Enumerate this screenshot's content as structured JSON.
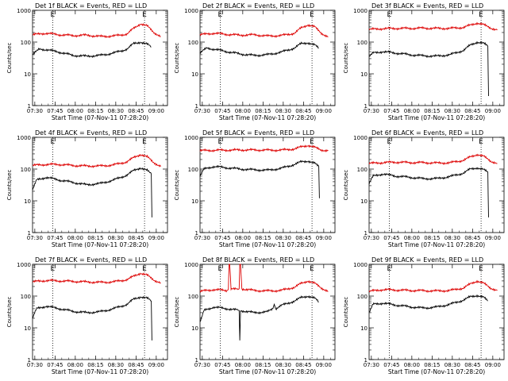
{
  "figure": {
    "ylabel": "Counts/sec",
    "xlabel": "Start Time (07-Nov-11 07:28:20)",
    "xticks": [
      "07:30",
      "07:45",
      "08:00",
      "08:15",
      "08:30",
      "08:45",
      "09:00"
    ],
    "yticks": [
      "1",
      "10",
      "100",
      "1000"
    ],
    "marker_label": "E",
    "colors": {
      "events": "#000000",
      "lld": "#dd0000",
      "axes": "#000000",
      "background": "#ffffff"
    },
    "x_range_minutes": [
      0,
      100
    ],
    "y_range_log": [
      1,
      1000
    ]
  },
  "chart_data": [
    {
      "type": "line",
      "title": "Det 1f BLACK = Events, RED = LLD",
      "xlabel": "Start Time (07-Nov-11 07:28:20)",
      "ylabel": "Counts/sec",
      "yscale": "log",
      "ylim": [
        1,
        1000
      ],
      "vlines_minutes": [
        15,
        83
      ],
      "series": [
        {
          "name": "LLD",
          "color": "#dd0000",
          "x": [
            0,
            10,
            20,
            30,
            40,
            50,
            60,
            70,
            75,
            80,
            85,
            90,
            95
          ],
          "y": [
            170,
            190,
            170,
            160,
            165,
            150,
            155,
            180,
            270,
            380,
            320,
            200,
            150
          ]
        },
        {
          "name": "Events",
          "color": "#000000",
          "x": [
            0,
            5,
            10,
            20,
            30,
            40,
            50,
            60,
            70,
            75,
            80,
            85,
            88
          ],
          "y": [
            40,
            60,
            58,
            48,
            38,
            36,
            38,
            45,
            60,
            90,
            100,
            85,
            70
          ]
        }
      ]
    },
    {
      "type": "line",
      "title": "Det 2f BLACK = Events, RED = LLD",
      "xlabel": "Start Time (07-Nov-11 07:28:20)",
      "ylabel": "Counts/sec",
      "yscale": "log",
      "ylim": [
        1,
        1000
      ],
      "vlines_minutes": [
        15,
        83
      ],
      "series": [
        {
          "name": "LLD",
          "color": "#dd0000",
          "x": [
            0,
            10,
            20,
            30,
            40,
            50,
            60,
            70,
            75,
            80,
            85,
            90,
            95
          ],
          "y": [
            170,
            190,
            175,
            165,
            170,
            155,
            160,
            190,
            280,
            350,
            300,
            190,
            145
          ]
        },
        {
          "name": "Events",
          "color": "#000000",
          "x": [
            0,
            5,
            10,
            20,
            30,
            40,
            50,
            60,
            70,
            75,
            80,
            85,
            88
          ],
          "y": [
            45,
            65,
            60,
            50,
            42,
            38,
            40,
            48,
            65,
            90,
            95,
            80,
            65
          ]
        }
      ]
    },
    {
      "type": "line",
      "title": "Det 3f BLACK = Events, RED = LLD",
      "xlabel": "Start Time (07-Nov-11 07:28:20)",
      "ylabel": "Counts/sec",
      "yscale": "log",
      "ylim": [
        1,
        1000
      ],
      "vlines_minutes": [
        15,
        83
      ],
      "series": [
        {
          "name": "LLD",
          "color": "#dd0000",
          "x": [
            0,
            10,
            20,
            30,
            40,
            50,
            60,
            70,
            75,
            80,
            85,
            90,
            95
          ],
          "y": [
            250,
            265,
            270,
            270,
            275,
            270,
            270,
            290,
            340,
            400,
            350,
            280,
            240
          ]
        },
        {
          "name": "Events",
          "color": "#000000",
          "x": [
            0,
            3,
            10,
            20,
            30,
            40,
            50,
            60,
            70,
            75,
            80,
            85,
            88,
            88.5
          ],
          "y": [
            35,
            45,
            50,
            45,
            40,
            37,
            36,
            40,
            55,
            80,
            100,
            90,
            75,
            2
          ]
        }
      ]
    },
    {
      "type": "line",
      "title": "Det 4f BLACK = Events, RED = LLD",
      "xlabel": "Start Time (07-Nov-11 07:28:20)",
      "ylabel": "Counts/sec",
      "yscale": "log",
      "ylim": [
        1,
        1000
      ],
      "vlines_minutes": [
        15,
        83
      ],
      "series": [
        {
          "name": "LLD",
          "color": "#dd0000",
          "x": [
            0,
            10,
            20,
            30,
            40,
            50,
            60,
            70,
            75,
            80,
            85,
            90,
            95
          ],
          "y": [
            130,
            140,
            140,
            130,
            125,
            125,
            135,
            170,
            230,
            290,
            240,
            160,
            120
          ]
        },
        {
          "name": "Events",
          "color": "#000000",
          "x": [
            0,
            3,
            10,
            20,
            30,
            40,
            50,
            60,
            70,
            75,
            80,
            85,
            88,
            88.5
          ],
          "y": [
            22,
            45,
            55,
            45,
            38,
            32,
            35,
            45,
            65,
            90,
            110,
            90,
            70,
            3
          ]
        }
      ]
    },
    {
      "type": "line",
      "title": "Det 5f BLACK = Events, RED = LLD",
      "xlabel": "Start Time (07-Nov-11 07:28:20)",
      "ylabel": "Counts/sec",
      "yscale": "log",
      "ylim": [
        1,
        1000
      ],
      "vlines_minutes": [
        15,
        83
      ],
      "series": [
        {
          "name": "LLD",
          "color": "#dd0000",
          "x": [
            0,
            10,
            20,
            30,
            40,
            50,
            60,
            70,
            75,
            80,
            85,
            90,
            95
          ],
          "y": [
            380,
            390,
            395,
            400,
            400,
            395,
            395,
            430,
            500,
            560,
            480,
            400,
            380
          ]
        },
        {
          "name": "Events",
          "color": "#000000",
          "x": [
            0,
            3,
            10,
            20,
            30,
            40,
            50,
            60,
            70,
            75,
            80,
            85,
            88,
            88.5
          ],
          "y": [
            60,
            100,
            120,
            110,
            100,
            95,
            92,
            105,
            140,
            170,
            180,
            150,
            120,
            12
          ]
        }
      ]
    },
    {
      "type": "line",
      "title": "Det 6f BLACK = Events, RED = LLD",
      "xlabel": "Start Time (07-Nov-11 07:28:20)",
      "ylabel": "Counts/sec",
      "yscale": "log",
      "ylim": [
        1,
        1000
      ],
      "vlines_minutes": [
        15,
        83
      ],
      "series": [
        {
          "name": "LLD",
          "color": "#dd0000",
          "x": [
            0,
            10,
            20,
            30,
            40,
            50,
            60,
            70,
            75,
            80,
            85,
            90,
            95
          ],
          "y": [
            150,
            160,
            165,
            160,
            160,
            155,
            158,
            190,
            240,
            290,
            250,
            180,
            150
          ]
        },
        {
          "name": "Events",
          "color": "#000000",
          "x": [
            0,
            3,
            10,
            20,
            30,
            40,
            50,
            60,
            70,
            75,
            80,
            85,
            88,
            88.5
          ],
          "y": [
            35,
            60,
            70,
            60,
            55,
            50,
            50,
            58,
            75,
            100,
            110,
            95,
            80,
            3
          ]
        }
      ]
    },
    {
      "type": "line",
      "title": "Det 7f BLACK = Events, RED = LLD",
      "xlabel": "Start Time (07-Nov-11 07:28:20)",
      "ylabel": "Counts/sec",
      "yscale": "log",
      "ylim": [
        1,
        1000
      ],
      "vlines_minutes": [
        15,
        83
      ],
      "series": [
        {
          "name": "LLD",
          "color": "#dd0000",
          "x": [
            0,
            10,
            20,
            30,
            40,
            50,
            60,
            70,
            75,
            80,
            85,
            90,
            95
          ],
          "y": [
            280,
            310,
            300,
            290,
            280,
            270,
            280,
            330,
            420,
            530,
            450,
            320,
            260
          ]
        },
        {
          "name": "Events",
          "color": "#000000",
          "x": [
            0,
            3,
            10,
            20,
            30,
            40,
            50,
            60,
            70,
            75,
            80,
            85,
            88,
            88.5
          ],
          "y": [
            20,
            40,
            48,
            40,
            33,
            30,
            32,
            40,
            55,
            80,
            95,
            85,
            70,
            4
          ]
        }
      ]
    },
    {
      "type": "line",
      "title": "Det 8f BLACK = Events, RED = LLD",
      "xlabel": "Start Time (07-Nov-11 07:28:20)",
      "ylabel": "Counts/sec",
      "yscale": "log",
      "ylim": [
        1,
        1000
      ],
      "vlines_minutes": [
        15,
        83
      ],
      "series": [
        {
          "name": "LLD",
          "color": "#dd0000",
          "x": [
            0,
            10,
            20,
            21,
            21.5,
            22,
            23,
            28,
            29,
            29.5,
            30,
            31,
            40,
            50,
            60,
            70,
            75,
            80,
            85,
            90,
            95
          ],
          "y": [
            140,
            160,
            150,
            160,
            1000,
            1000,
            170,
            160,
            170,
            1000,
            1000,
            170,
            150,
            145,
            150,
            190,
            250,
            300,
            250,
            180,
            140
          ]
        },
        {
          "name": "Events",
          "color": "#000000",
          "x": [
            0,
            3,
            10,
            20,
            28,
            29,
            29.5,
            30,
            40,
            50,
            54,
            55,
            56,
            60,
            70,
            75,
            80,
            85,
            88
          ],
          "y": [
            15,
            35,
            45,
            40,
            36,
            35,
            4,
            35,
            30,
            32,
            40,
            55,
            40,
            50,
            70,
            90,
            100,
            85,
            65
          ]
        }
      ]
    },
    {
      "type": "line",
      "title": "Det 9f BLACK = Events, RED = LLD",
      "xlabel": "Start Time (07-Nov-11 07:28:20)",
      "ylabel": "Counts/sec",
      "yscale": "log",
      "ylim": [
        1,
        1000
      ],
      "vlines_minutes": [
        15,
        83
      ],
      "series": [
        {
          "name": "LLD",
          "color": "#dd0000",
          "x": [
            0,
            10,
            20,
            30,
            40,
            50,
            60,
            70,
            75,
            80,
            85,
            90,
            95
          ],
          "y": [
            140,
            160,
            155,
            150,
            148,
            145,
            150,
            180,
            240,
            300,
            250,
            180,
            150
          ]
        },
        {
          "name": "Events",
          "color": "#000000",
          "x": [
            0,
            3,
            10,
            20,
            30,
            40,
            50,
            60,
            70,
            75,
            80,
            85,
            88
          ],
          "y": [
            30,
            55,
            60,
            52,
            46,
            42,
            45,
            55,
            75,
            95,
            105,
            90,
            70
          ]
        }
      ]
    }
  ]
}
